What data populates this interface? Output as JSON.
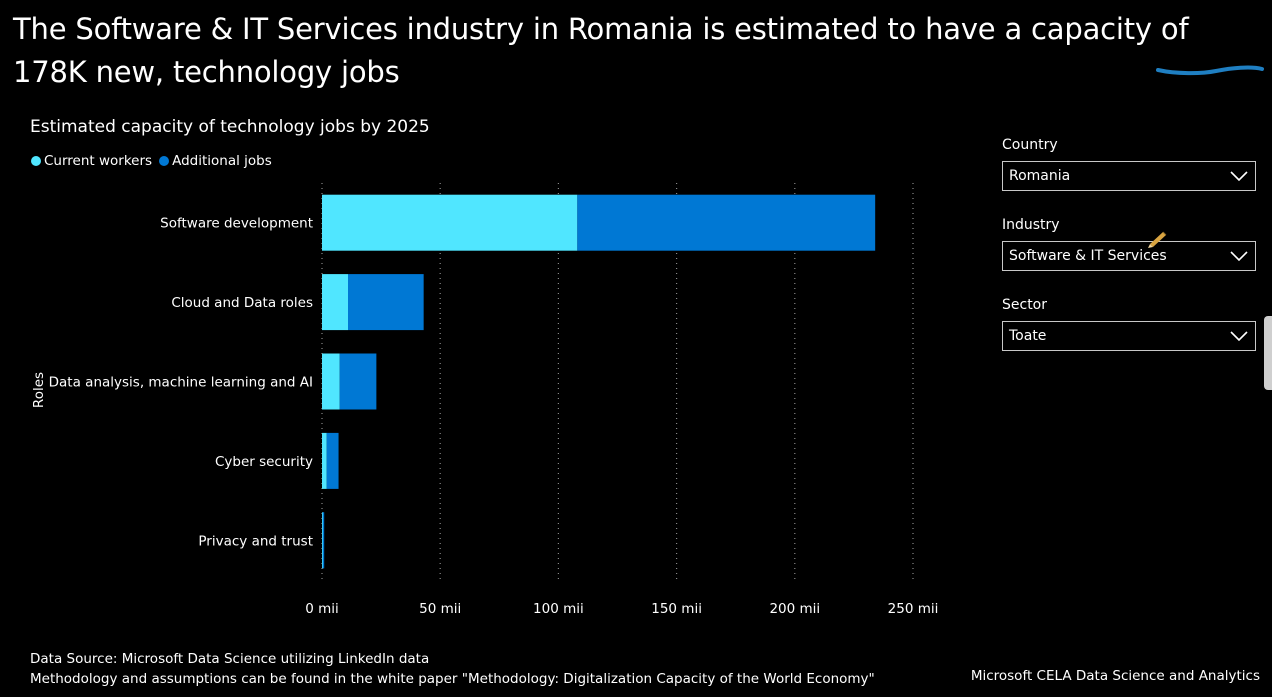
{
  "headline": "The Software & IT Services industry in Romania is estimated to have a capacity of 178K new, technology jobs",
  "chart_data": {
    "type": "bar",
    "orientation": "horizontal",
    "stacked": true,
    "title": "Estimated capacity of technology jobs by 2025",
    "ylabel": "Roles",
    "categories": [
      "Software development",
      "Cloud and Data roles",
      "Data analysis, machine learning and AI",
      "Cyber security",
      "Privacy and trust"
    ],
    "series": [
      {
        "name": "Current workers",
        "color": "#50E6FF",
        "values": [
          108,
          11,
          7.5,
          2,
          0.3
        ]
      },
      {
        "name": "Additional jobs",
        "color": "#0078D4",
        "values": [
          126,
          32,
          15.5,
          5,
          0.5
        ]
      }
    ],
    "xlim": [
      0,
      250
    ],
    "xticks": [
      0,
      50,
      100,
      150,
      200,
      250
    ],
    "xtick_labels": [
      "0 mii",
      "50 mii",
      "100 mii",
      "150 mii",
      "200 mii",
      "250 mii"
    ],
    "grid": "vertical-dotted",
    "legend_position": "top-left"
  },
  "filters": [
    {
      "label": "Country",
      "value": "Romania"
    },
    {
      "label": "Industry",
      "value": "Software & IT Services"
    },
    {
      "label": "Sector",
      "value": "Toate"
    }
  ],
  "footer": {
    "source": "Data Source: Microsoft Data Science utilizing LinkedIn data",
    "methodology": "Methodology and assumptions can be found in the white paper \"Methodology: Digitalization Capacity of the World Economy\"",
    "credit": "Microsoft CELA Data Science and Analytics"
  },
  "colors": {
    "background": "#000000",
    "current_workers": "#50E6FF",
    "additional_jobs": "#0078D4",
    "accent_stroke": "#1f7fc2"
  },
  "icons": {
    "dropdown": "chevron-down-icon",
    "edit": "pencil-icon"
  }
}
